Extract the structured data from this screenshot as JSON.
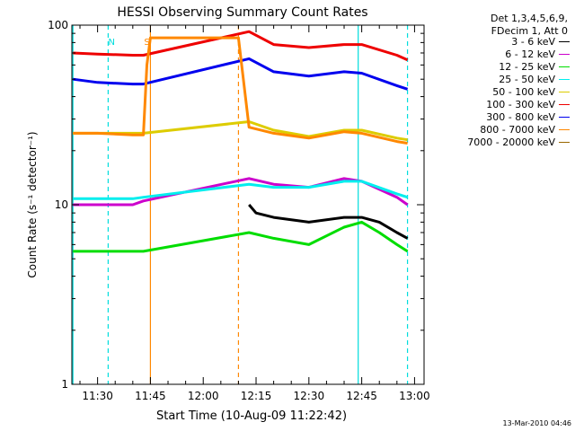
{
  "chart_data": {
    "type": "line",
    "title": "HESSI Observing Summary Count Rates",
    "xlabel": "Start Time (10-Aug-09 11:22:42)",
    "ylabel": "Count Rate (s⁻¹ detector⁻¹)",
    "yscale": "log",
    "ylim": [
      1,
      100
    ],
    "xlim": [
      "11:22:42",
      "13:02:42"
    ],
    "x_ticks": [
      "11:30",
      "11:45",
      "12:00",
      "12:15",
      "12:30",
      "12:45",
      "13:00"
    ],
    "y_ticks": [
      "1",
      "10",
      "100"
    ],
    "legend_header": [
      "Det 1,3,4,5,6,9,",
      "FDecim 1, Att 0"
    ],
    "series": [
      {
        "name": "3 - 6 keV",
        "color": "#000000",
        "points": [
          [
            "12:13",
            10
          ],
          [
            "12:15",
            9
          ],
          [
            "12:20",
            8.5
          ],
          [
            "12:30",
            8
          ],
          [
            "12:40",
            8.5
          ],
          [
            "12:45",
            8.5
          ],
          [
            "12:50",
            8
          ],
          [
            "12:55",
            7
          ],
          [
            "12:58",
            6.5
          ]
        ]
      },
      {
        "name": "6 - 12 keV",
        "color": "#cc00cc",
        "points": [
          [
            "11:23",
            10
          ],
          [
            "11:30",
            10
          ],
          [
            "11:40",
            10
          ],
          [
            "11:43",
            10.5
          ],
          [
            "12:13",
            14
          ],
          [
            "12:20",
            13
          ],
          [
            "12:30",
            12.5
          ],
          [
            "12:40",
            14
          ],
          [
            "12:45",
            13.5
          ],
          [
            "12:55",
            11
          ],
          [
            "12:58",
            10
          ]
        ]
      },
      {
        "name": "12 - 25 keV",
        "color": "#00dd00",
        "points": [
          [
            "11:23",
            5.5
          ],
          [
            "11:30",
            5.5
          ],
          [
            "11:40",
            5.5
          ],
          [
            "11:43",
            5.5
          ],
          [
            "12:13",
            7
          ],
          [
            "12:20",
            6.5
          ],
          [
            "12:30",
            6
          ],
          [
            "12:40",
            7.5
          ],
          [
            "12:45",
            8
          ],
          [
            "12:50",
            7
          ],
          [
            "12:55",
            6
          ],
          [
            "12:58",
            5.5
          ]
        ]
      },
      {
        "name": "25 - 50 keV",
        "color": "#00eeee",
        "points": [
          [
            "11:23",
            10.8
          ],
          [
            "11:30",
            10.8
          ],
          [
            "11:40",
            10.8
          ],
          [
            "11:43",
            11
          ],
          [
            "12:13",
            13
          ],
          [
            "12:20",
            12.5
          ],
          [
            "12:30",
            12.5
          ],
          [
            "12:40",
            13.5
          ],
          [
            "12:45",
            13.5
          ],
          [
            "12:55",
            11.5
          ],
          [
            "12:58",
            11
          ]
        ]
      },
      {
        "name": "50 - 100 keV",
        "color": "#ddcc00",
        "points": [
          [
            "11:23",
            25
          ],
          [
            "11:30",
            25
          ],
          [
            "11:40",
            25
          ],
          [
            "11:43",
            25
          ],
          [
            "12:13",
            29
          ],
          [
            "12:20",
            26
          ],
          [
            "12:30",
            24
          ],
          [
            "12:40",
            26
          ],
          [
            "12:45",
            26
          ],
          [
            "12:55",
            23.5
          ],
          [
            "12:58",
            23
          ]
        ]
      },
      {
        "name": "100 - 300 keV",
        "color": "#ee0000",
        "points": [
          [
            "11:23",
            70
          ],
          [
            "11:30",
            69
          ],
          [
            "11:40",
            68
          ],
          [
            "11:43",
            68
          ],
          [
            "12:13",
            92
          ],
          [
            "12:20",
            78
          ],
          [
            "12:30",
            75
          ],
          [
            "12:40",
            78
          ],
          [
            "12:45",
            78
          ],
          [
            "12:55",
            68
          ],
          [
            "12:58",
            64
          ]
        ]
      },
      {
        "name": "300 - 800 keV",
        "color": "#0000ee",
        "points": [
          [
            "11:23",
            50
          ],
          [
            "11:30",
            48
          ],
          [
            "11:40",
            47
          ],
          [
            "11:43",
            47
          ],
          [
            "12:13",
            65
          ],
          [
            "12:20",
            55
          ],
          [
            "12:30",
            52
          ],
          [
            "12:40",
            55
          ],
          [
            "12:45",
            54
          ],
          [
            "12:55",
            46
          ],
          [
            "12:58",
            44
          ]
        ]
      },
      {
        "name": "800 - 7000 keV",
        "color": "#ff8800",
        "points": [
          [
            "11:23",
            25
          ],
          [
            "11:30",
            25
          ],
          [
            "11:40",
            24.5
          ],
          [
            "11:43",
            24.5
          ],
          [
            "11:44",
            60
          ],
          [
            "11:45",
            85
          ],
          [
            "11:46",
            85
          ],
          [
            "12:10",
            85
          ],
          [
            "12:13",
            27
          ],
          [
            "12:20",
            25
          ],
          [
            "12:30",
            23.5
          ],
          [
            "12:40",
            25.5
          ],
          [
            "12:45",
            25
          ],
          [
            "12:55",
            22.5
          ],
          [
            "12:58",
            22
          ]
        ]
      },
      {
        "name": "7000 - 20000 keV",
        "color": "#996600",
        "points": []
      }
    ],
    "vertical_lines": [
      {
        "time": "11:23",
        "style": "solid",
        "color": "#00dddd"
      },
      {
        "time": "11:33",
        "style": "dashed",
        "color": "#00dddd"
      },
      {
        "time": "11:45",
        "style": "solid",
        "color": "#ff8800"
      },
      {
        "time": "12:10",
        "style": "dashed",
        "color": "#ff8800"
      },
      {
        "time": "12:44",
        "style": "solid",
        "color": "#00dddd"
      },
      {
        "time": "12:58",
        "style": "dashed",
        "color": "#00dddd"
      }
    ],
    "annotations": [
      {
        "text": "N",
        "time": "11:34",
        "color": "#00dddd"
      },
      {
        "text": "S",
        "time": "11:44",
        "color": "#ff8800"
      }
    ]
  },
  "timestamp": "13-Mar-2010 04:46"
}
